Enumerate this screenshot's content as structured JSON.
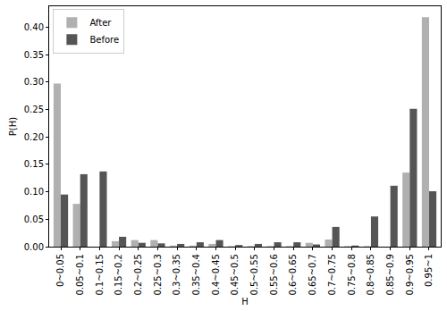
{
  "chart_data": {
    "type": "bar",
    "x_label": "H",
    "y_label": "P(H)",
    "categories": [
      "0~0.05",
      "0.05~0.1",
      "0.1~0.15",
      "0.15~0.2",
      "0.2~0.25",
      "0.25~0.3",
      "0.3~0.35",
      "0.35~0.4",
      "0.4~0.45",
      "0.45~0.5",
      "0.5~0.55",
      "0.55~0.6",
      "0.6~0.65",
      "0.65~0.7",
      "0.7~0.75",
      "0.75~0.8",
      "0.8~0.85",
      "0.85~0.9",
      "0.9~0.95",
      "0.95~1"
    ],
    "series": [
      {
        "name": "After",
        "color": "#b0b0b0",
        "values": [
          0.297,
          0.078,
          0,
          0.01,
          0.012,
          0.012,
          0.002,
          0.002,
          0.005,
          0.001,
          0.001,
          0.001,
          0.001,
          0.007,
          0.013,
          0.001,
          0.001,
          0,
          0.135,
          0.418
        ]
      },
      {
        "name": "Before",
        "color": "#555555",
        "values": [
          0.095,
          0.132,
          0.137,
          0.018,
          0.007,
          0.006,
          0.005,
          0.008,
          0.012,
          0.003,
          0.005,
          0.008,
          0.008,
          0.004,
          0.036,
          0.002,
          0.055,
          0.111,
          0.251,
          0.101
        ]
      }
    ],
    "ylim": [
      0,
      0.438
    ],
    "yticks": [
      {
        "value": 0,
        "label": "0.00"
      },
      {
        "value": 0.05,
        "label": "0.05"
      },
      {
        "value": 0.1,
        "label": "0.10"
      },
      {
        "value": 0.15,
        "label": "0.15"
      },
      {
        "value": 0.2,
        "label": "0.20"
      },
      {
        "value": 0.25,
        "label": "0.25"
      },
      {
        "value": 0.3,
        "label": "0.30"
      },
      {
        "value": 0.35,
        "label": "0.35"
      },
      {
        "value": 0.4,
        "label": "0.40"
      }
    ],
    "grid": false,
    "legend": "upper left"
  }
}
